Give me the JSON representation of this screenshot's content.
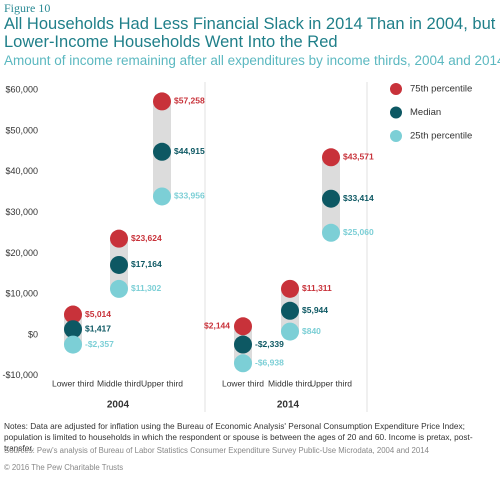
{
  "chart_data": {
    "type": "dot-range",
    "label": "Figure 10",
    "title": "All Households Had Less Financial Slack in 2014 Than in 2004, but Lower-Income Households Went Into the Red",
    "subtitle": "Amount of income remaining after all expenditures by income thirds, 2004 and 2014",
    "groups": [
      "2004",
      "2014"
    ],
    "categories": [
      "Lower third",
      "Middle third",
      "Upper third",
      "Lower third",
      "Middle third",
      "Upper third"
    ],
    "series": [
      {
        "name": "75th percentile",
        "color": "#c8323a",
        "values": [
          5014,
          23624,
          57258,
          2144,
          11311,
          43571
        ],
        "value_labels": [
          "$5,014",
          "$23,624",
          "$57,258",
          "$2,144",
          "$11,311",
          "$43,571"
        ]
      },
      {
        "name": "Median",
        "color": "#0d5863",
        "values": [
          1417,
          17164,
          44915,
          -2339,
          5944,
          33414
        ],
        "value_labels": [
          "$1,417",
          "$17,164",
          "$44,915",
          "-$2,339",
          "$5,944",
          "$33,414"
        ]
      },
      {
        "name": "25th percentile",
        "color": "#7ccfd6",
        "values": [
          -2357,
          11302,
          33956,
          -6938,
          840,
          25060
        ],
        "value_labels": [
          "-$2,357",
          "$11,302",
          "$33,956",
          "-$6,938",
          "$840",
          "$25,060"
        ]
      }
    ],
    "ylim": [
      -12500,
      63000
    ],
    "yticks": [
      {
        "value": -10000,
        "label": "-$10,000"
      },
      {
        "value": 0,
        "label": "$0"
      },
      {
        "value": 10000,
        "label": "$10,000"
      },
      {
        "value": 20000,
        "label": "$20,000"
      },
      {
        "value": 30000,
        "label": "$30,000"
      },
      {
        "value": 40000,
        "label": "$40,000"
      },
      {
        "value": 50000,
        "label": "$50,000"
      },
      {
        "value": 60000,
        "label": "$60,000"
      }
    ],
    "notes": "Notes: Data are adjusted for inflation using the Bureau of Economic Analysis' Personal Consumption Expenditure Price Index; population is limited to households in which the respondent or spouse is between the ages of 20 and 60. Income is pretax, post-transfer.",
    "source": "Sources: Pew's analysis of Bureau of Labor Statistics Consumer Expenditure Survey Public-Use Microdata, 2004 and 2014",
    "copyright": "© 2016 The Pew Charitable Trusts"
  }
}
